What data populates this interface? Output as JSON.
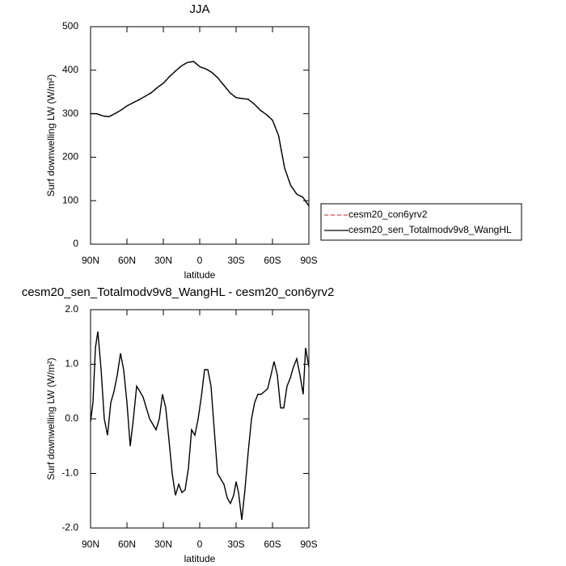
{
  "chart_data": [
    {
      "type": "line",
      "title": "JJA",
      "x_label": "latitude",
      "y_label": "Surf downwelling LW (W/m²)",
      "x": [
        90,
        85,
        80,
        75,
        70,
        65,
        60,
        55,
        50,
        45,
        40,
        35,
        30,
        25,
        20,
        15,
        10,
        5,
        0,
        -5,
        -10,
        -15,
        -20,
        -25,
        -30,
        -35,
        -40,
        -45,
        -50,
        -55,
        -60,
        -65,
        -70,
        -75,
        -80,
        -85,
        -90
      ],
      "series": [
        {
          "name": "cesm20_con6yrv2",
          "color": "#e8483c",
          "line_style": "dashed",
          "values": [
            300,
            300,
            295,
            293,
            300,
            308,
            318,
            325,
            332,
            340,
            348,
            360,
            370,
            385,
            398,
            410,
            418,
            420,
            408,
            403,
            395,
            382,
            365,
            348,
            337,
            335,
            333,
            322,
            308,
            298,
            285,
            250,
            175,
            135,
            115,
            108,
            88
          ]
        },
        {
          "name": "cesm20_sen_Totalmodv9v8_WangHL",
          "color": "#000000",
          "line_style": "solid",
          "values": [
            300,
            300,
            295,
            293,
            300,
            308,
            318,
            325,
            332,
            340,
            348,
            360,
            370,
            385,
            398,
            410,
            418,
            420,
            408,
            403,
            395,
            382,
            365,
            348,
            337,
            335,
            333,
            322,
            308,
            298,
            285,
            250,
            175,
            135,
            115,
            108,
            88
          ]
        }
      ],
      "xlim": [
        90,
        -90
      ],
      "xticks": [
        {
          "value": 90,
          "label": "90N"
        },
        {
          "value": 60,
          "label": "60N"
        },
        {
          "value": 30,
          "label": "30N"
        },
        0,
        {
          "value": -30,
          "label": "30S"
        },
        {
          "value": -60,
          "label": "60S"
        },
        {
          "value": -90,
          "label": "90S"
        }
      ],
      "ylim": [
        0,
        500
      ],
      "yticks": [
        0,
        100,
        200,
        300,
        400,
        500
      ],
      "grid": false,
      "legend": "right"
    },
    {
      "type": "line",
      "title": "cesm20_sen_Totalmodv9v8_WangHL - cesm20_con6yrv2",
      "x_label": "latitude",
      "y_label": "Surf downwelling LW (W/m²)",
      "x": [
        90,
        88,
        86,
        84,
        81.3,
        78.7,
        76,
        73.3,
        70.7,
        68,
        65.3,
        62.7,
        60,
        57.3,
        54.7,
        52,
        49.3,
        46.7,
        44,
        41.3,
        38.7,
        36,
        33.3,
        30.7,
        28,
        25.3,
        22.7,
        20,
        17.3,
        14.7,
        12,
        9.3,
        6.7,
        4,
        1.3,
        -1.3,
        -4,
        -6.7,
        -9.3,
        -12,
        -14.7,
        -17.3,
        -20,
        -22.7,
        -25.3,
        -28,
        -30,
        -32,
        -34.7,
        -37.3,
        -40,
        -42.7,
        -45.3,
        -48,
        -50.7,
        -53.3,
        -56,
        -58.7,
        -61.3,
        -64,
        -66.7,
        -69.3,
        -72,
        -74.7,
        -77.3,
        -80,
        -82.7,
        -85.3,
        -87.3,
        -90
      ],
      "series": [
        {
          "color": "#000000",
          "line_style": "solid",
          "values": [
            -0.05,
            0.3,
            1.3,
            1.6,
            0.9,
            0.0,
            -0.3,
            0.3,
            0.5,
            0.8,
            1.2,
            0.9,
            0.3,
            -0.5,
            0.0,
            0.6,
            0.5,
            0.4,
            0.2,
            0.0,
            -0.1,
            -0.2,
            0.0,
            0.45,
            0.2,
            -0.4,
            -1.0,
            -1.4,
            -1.2,
            -1.35,
            -1.3,
            -0.9,
            -0.2,
            -0.3,
            0.0,
            0.4,
            0.9,
            0.9,
            0.6,
            -0.2,
            -1.0,
            -1.1,
            -1.2,
            -1.45,
            -1.55,
            -1.4,
            -1.15,
            -1.35,
            -1.85,
            -1.3,
            -0.6,
            0.0,
            0.3,
            0.45,
            0.45,
            0.5,
            0.55,
            0.8,
            1.05,
            0.8,
            0.2,
            0.2,
            0.6,
            0.75,
            0.95,
            1.1,
            0.8,
            0.45,
            1.3,
            0.95
          ]
        }
      ],
      "xlim": [
        90,
        -90
      ],
      "xticks": [
        {
          "value": 90,
          "label": "90N"
        },
        {
          "value": 60,
          "label": "60N"
        },
        {
          "value": 30,
          "label": "30N"
        },
        0,
        {
          "value": -30,
          "label": "30S"
        },
        {
          "value": -60,
          "label": "60S"
        },
        {
          "value": -90,
          "label": "90S"
        }
      ],
      "ylim": [
        -2,
        2
      ],
      "yticks": [
        {
          "value": -2,
          "label": "-2.0"
        },
        {
          "value": -1,
          "label": "-1.0"
        },
        {
          "value": 0,
          "label": "0.0"
        },
        {
          "value": 1,
          "label": "1.0"
        },
        {
          "value": 2,
          "label": "2.0"
        }
      ],
      "grid": false
    }
  ]
}
